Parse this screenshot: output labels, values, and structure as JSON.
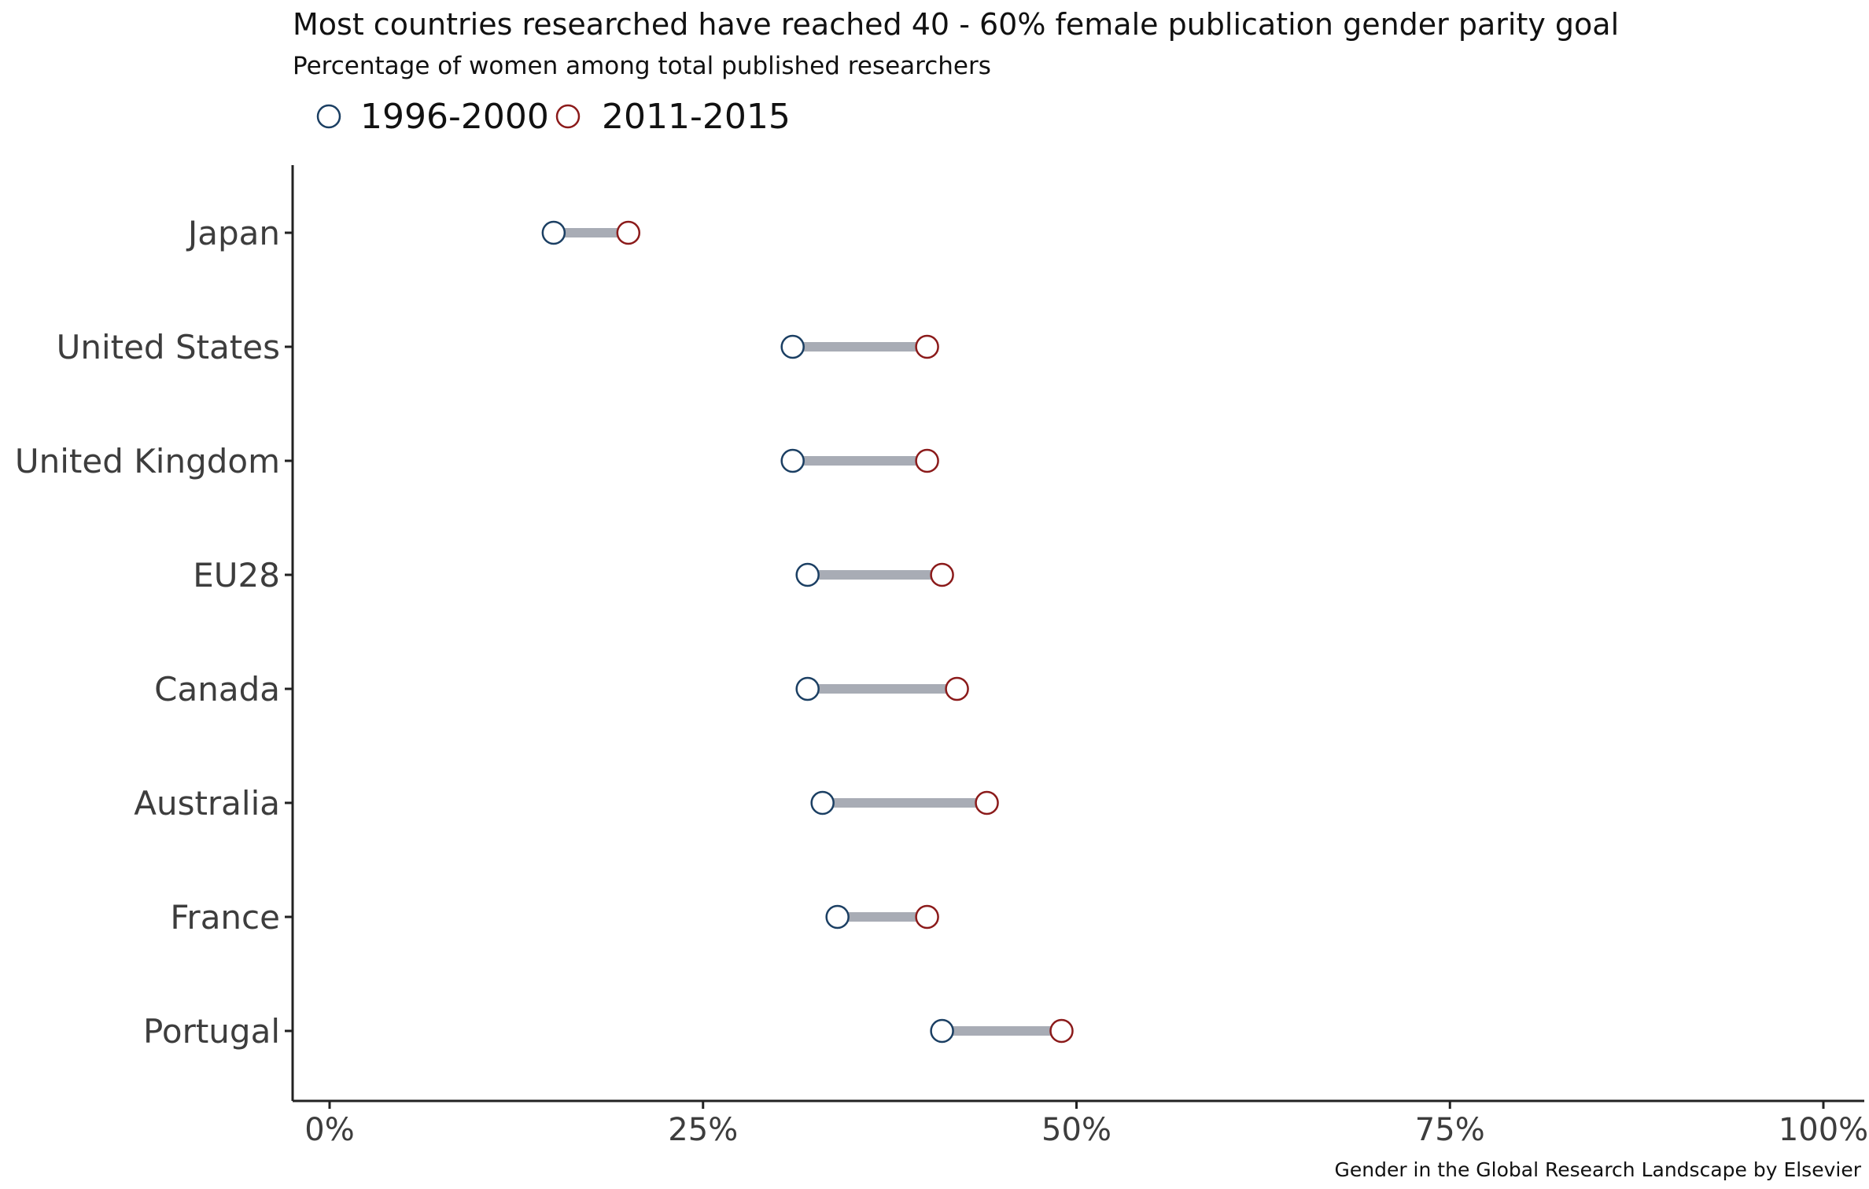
{
  "chart_data": {
    "type": "dumbbell",
    "title": "Most countries researched have reached 40 - 60% female publication gender parity goal",
    "subtitle": "Percentage of women among total published researchers",
    "caption": "Gender in the Global Research Landscape by Elsevier",
    "xlabel": "",
    "ylabel": "",
    "xlim": [
      0,
      100
    ],
    "x_ticks": [
      0,
      25,
      50,
      75,
      100
    ],
    "x_tick_labels": [
      "0%",
      "25%",
      "50%",
      "75%",
      "100%"
    ],
    "grid": false,
    "legend_position": "top-left",
    "connector_color": "#a8acb5",
    "categories": [
      "Japan",
      "United States",
      "United Kingdom",
      "EU28",
      "Canada",
      "Australia",
      "France",
      "Portugal"
    ],
    "series": [
      {
        "name": "1996-2000",
        "color": "#1b3f63",
        "values": [
          15,
          31,
          31,
          32,
          32,
          33,
          34,
          41
        ]
      },
      {
        "name": "2011-2015",
        "color": "#8b1a1a",
        "values": [
          20,
          40,
          40,
          41,
          42,
          44,
          40,
          49
        ]
      }
    ]
  }
}
